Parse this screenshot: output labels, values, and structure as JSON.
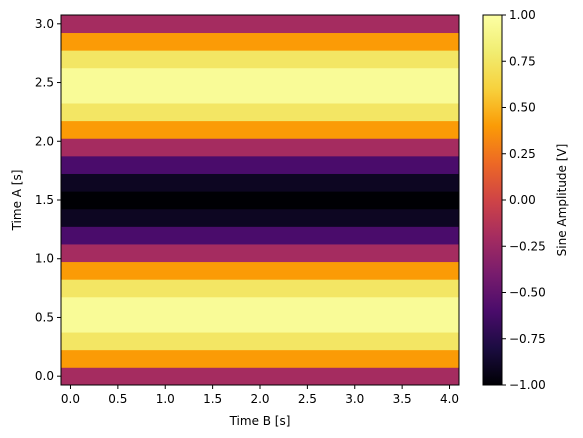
{
  "chart_data": {
    "type": "heatmap",
    "title": "",
    "xlabel": "Time B [s]",
    "ylabel": "Time A [s]",
    "colorbar_label": "Sine Amplitude [V]",
    "colormap": "inferno",
    "xlim": [
      -0.1,
      4.1
    ],
    "ylim": [
      -0.075,
      3.075
    ],
    "clim": [
      -1.0,
      1.0
    ],
    "x_ticks": [
      "0.0",
      "0.5",
      "1.0",
      "1.5",
      "2.0",
      "2.5",
      "3.0",
      "3.5",
      "4.0"
    ],
    "y_ticks": [
      "0.0",
      "0.5",
      "1.0",
      "1.5",
      "2.0",
      "2.5",
      "3.0"
    ],
    "colorbar_ticks": [
      "1.00",
      "0.75",
      "0.50",
      "0.25",
      "0.00",
      "−0.25",
      "−0.50",
      "−0.75",
      "−1.00"
    ],
    "row_step": 0.15,
    "rows": [
      {
        "y": 0.0,
        "value": -0.2
      },
      {
        "y": 0.15,
        "value": 0.4
      },
      {
        "y": 0.3,
        "value": 0.75
      },
      {
        "y": 0.45,
        "value": 0.95
      },
      {
        "y": 0.6,
        "value": 0.95
      },
      {
        "y": 0.75,
        "value": 0.75
      },
      {
        "y": 0.9,
        "value": 0.4
      },
      {
        "y": 1.05,
        "value": -0.2
      },
      {
        "y": 1.2,
        "value": -0.6
      },
      {
        "y": 1.35,
        "value": -0.9
      },
      {
        "y": 1.5,
        "value": -1.0
      },
      {
        "y": 1.65,
        "value": -0.9
      },
      {
        "y": 1.8,
        "value": -0.6
      },
      {
        "y": 1.95,
        "value": -0.2
      },
      {
        "y": 2.1,
        "value": 0.4
      },
      {
        "y": 2.25,
        "value": 0.75
      },
      {
        "y": 2.4,
        "value": 0.95
      },
      {
        "y": 2.55,
        "value": 0.95
      },
      {
        "y": 2.7,
        "value": 0.75
      },
      {
        "y": 2.85,
        "value": 0.4
      },
      {
        "y": 3.0,
        "value": -0.2
      }
    ]
  }
}
